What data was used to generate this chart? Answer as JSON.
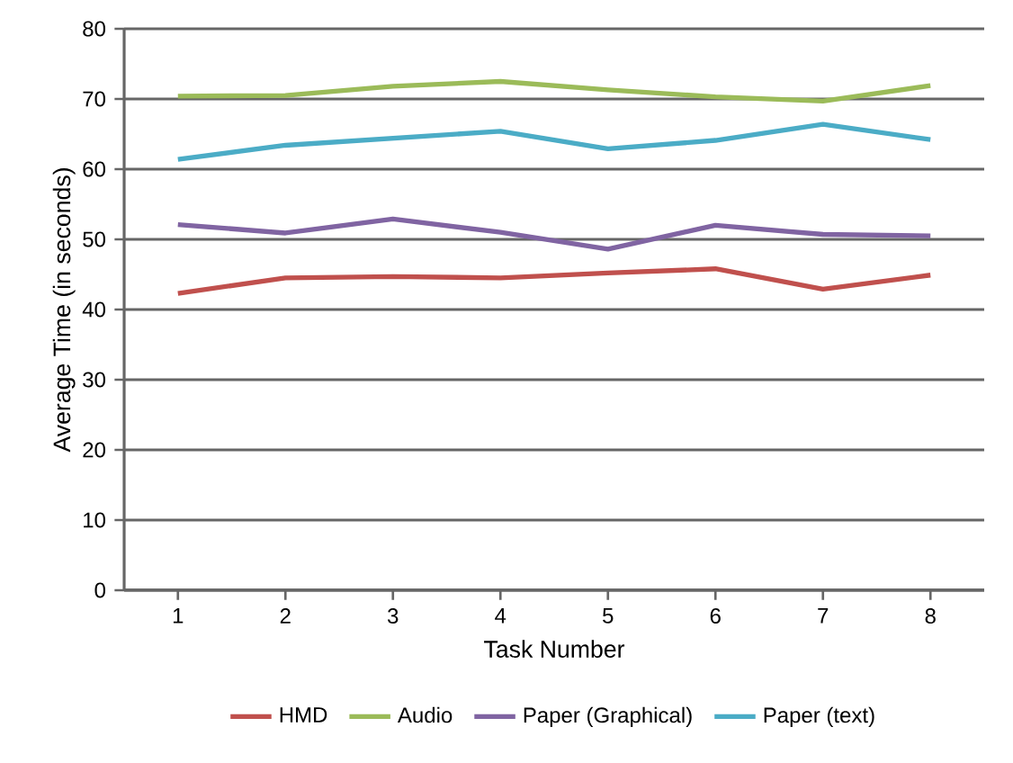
{
  "chart_data": {
    "type": "line",
    "xlabel": "Task Number",
    "ylabel": "Average Time (in seconds)",
    "categories": [
      "1",
      "2",
      "3",
      "4",
      "5",
      "6",
      "7",
      "8"
    ],
    "series": [
      {
        "name": "HMD",
        "color": "#c0504d",
        "values": [
          42.3,
          44.5,
          44.7,
          44.5,
          45.2,
          45.8,
          42.9,
          44.9
        ]
      },
      {
        "name": "Audio",
        "color": "#9bbb59",
        "values": [
          70.4,
          70.5,
          71.8,
          72.5,
          71.3,
          70.3,
          69.7,
          71.9
        ]
      },
      {
        "name": "Paper (Graphical)",
        "color": "#8064a2",
        "values": [
          52.1,
          50.9,
          52.9,
          51.0,
          48.6,
          52.0,
          50.7,
          50.5
        ]
      },
      {
        "name": "Paper (text)",
        "color": "#4bacc6",
        "values": [
          61.4,
          63.4,
          64.4,
          65.4,
          62.9,
          64.1,
          66.4,
          64.2
        ]
      }
    ],
    "ylim": [
      0,
      80
    ],
    "yticks": [
      0,
      10,
      20,
      30,
      40,
      50,
      60,
      70,
      80
    ],
    "grid": "y",
    "legend": "bottom",
    "marker": "none",
    "line_style": "solid"
  }
}
